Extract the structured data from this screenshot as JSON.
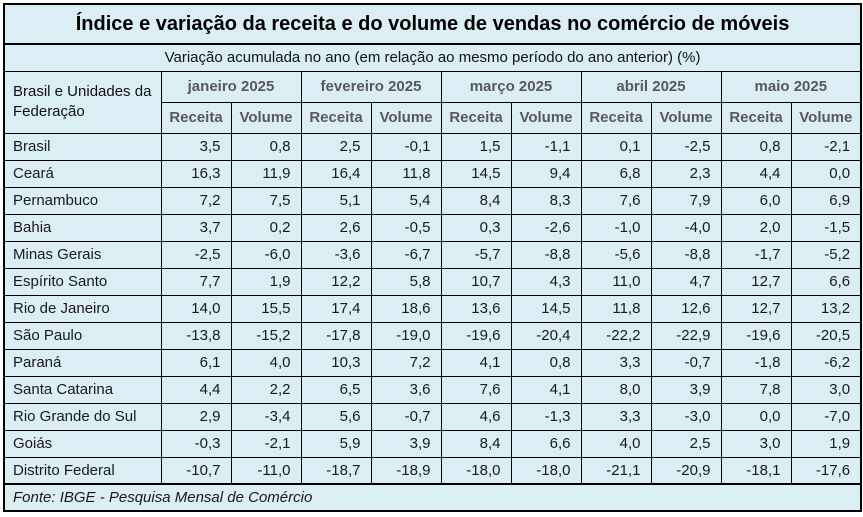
{
  "colors": {
    "table_background": "#daeef3",
    "border": "#000000",
    "header_text": "#595959",
    "body_text": "#1a1a1a",
    "page_background": "#ffffff"
  },
  "chart_data": {
    "type": "table",
    "title": "Índice e variação da receita e do volume de vendas no comércio de móveis",
    "subtitle": "Variação acumulada no ano (em relação ao mesmo período do ano anterior) (%)",
    "row_header": "Brasil e Unidades da Federação",
    "column_groups": [
      "janeiro 2025",
      "fevereiro 2025",
      "março 2025",
      "abril 2025",
      "maio 2025"
    ],
    "sub_columns": [
      "Receita",
      "Volume"
    ],
    "value_unit": "%",
    "decimal_separator": ",",
    "rows": [
      {
        "label": "Brasil",
        "values": [
          3.5,
          0.8,
          2.5,
          -0.1,
          1.5,
          -1.1,
          0.1,
          -2.5,
          0.8,
          -2.1
        ]
      },
      {
        "label": "Ceará",
        "values": [
          16.3,
          11.9,
          16.4,
          11.8,
          14.5,
          9.4,
          6.8,
          2.3,
          4.4,
          0.0
        ]
      },
      {
        "label": "Pernambuco",
        "values": [
          7.2,
          7.5,
          5.1,
          5.4,
          8.4,
          8.3,
          7.6,
          7.9,
          6.0,
          6.9
        ]
      },
      {
        "label": "Bahia",
        "values": [
          3.7,
          0.2,
          2.6,
          -0.5,
          0.3,
          -2.6,
          -1.0,
          -4.0,
          2.0,
          -1.5
        ]
      },
      {
        "label": "Minas Gerais",
        "values": [
          -2.5,
          -6.0,
          -3.6,
          -6.7,
          -5.7,
          -8.8,
          -5.6,
          -8.8,
          -1.7,
          -5.2
        ]
      },
      {
        "label": "Espírito Santo",
        "values": [
          7.7,
          1.9,
          12.2,
          5.8,
          10.7,
          4.3,
          11.0,
          4.7,
          12.7,
          6.6
        ]
      },
      {
        "label": "Rio de Janeiro",
        "values": [
          14.0,
          15.5,
          17.4,
          18.6,
          13.6,
          14.5,
          11.8,
          12.6,
          12.7,
          13.2
        ]
      },
      {
        "label": "São Paulo",
        "values": [
          -13.8,
          -15.2,
          -17.8,
          -19.0,
          -19.6,
          -20.4,
          -22.2,
          -22.9,
          -19.6,
          -20.5
        ]
      },
      {
        "label": "Paraná",
        "values": [
          6.1,
          4.0,
          10.3,
          7.2,
          4.1,
          0.8,
          3.3,
          -0.7,
          -1.8,
          -6.2
        ]
      },
      {
        "label": "Santa Catarina",
        "values": [
          4.4,
          2.2,
          6.5,
          3.6,
          7.6,
          4.1,
          8.0,
          3.9,
          7.8,
          3.0
        ]
      },
      {
        "label": "Rio Grande do Sul",
        "values": [
          2.9,
          -3.4,
          5.6,
          -0.7,
          4.6,
          -1.3,
          3.3,
          -3.0,
          0.0,
          -7.0
        ]
      },
      {
        "label": "Goiás",
        "values": [
          -0.3,
          -2.1,
          5.9,
          3.9,
          8.4,
          6.6,
          4.0,
          2.5,
          3.0,
          1.9
        ]
      },
      {
        "label": "Distrito Federal",
        "values": [
          -10.7,
          -11.0,
          -18.7,
          -18.9,
          -18.0,
          -18.0,
          -21.1,
          -20.9,
          -18.1,
          -17.6
        ]
      }
    ],
    "footer": "Fonte: IBGE - Pesquisa Mensal de Comércio"
  }
}
